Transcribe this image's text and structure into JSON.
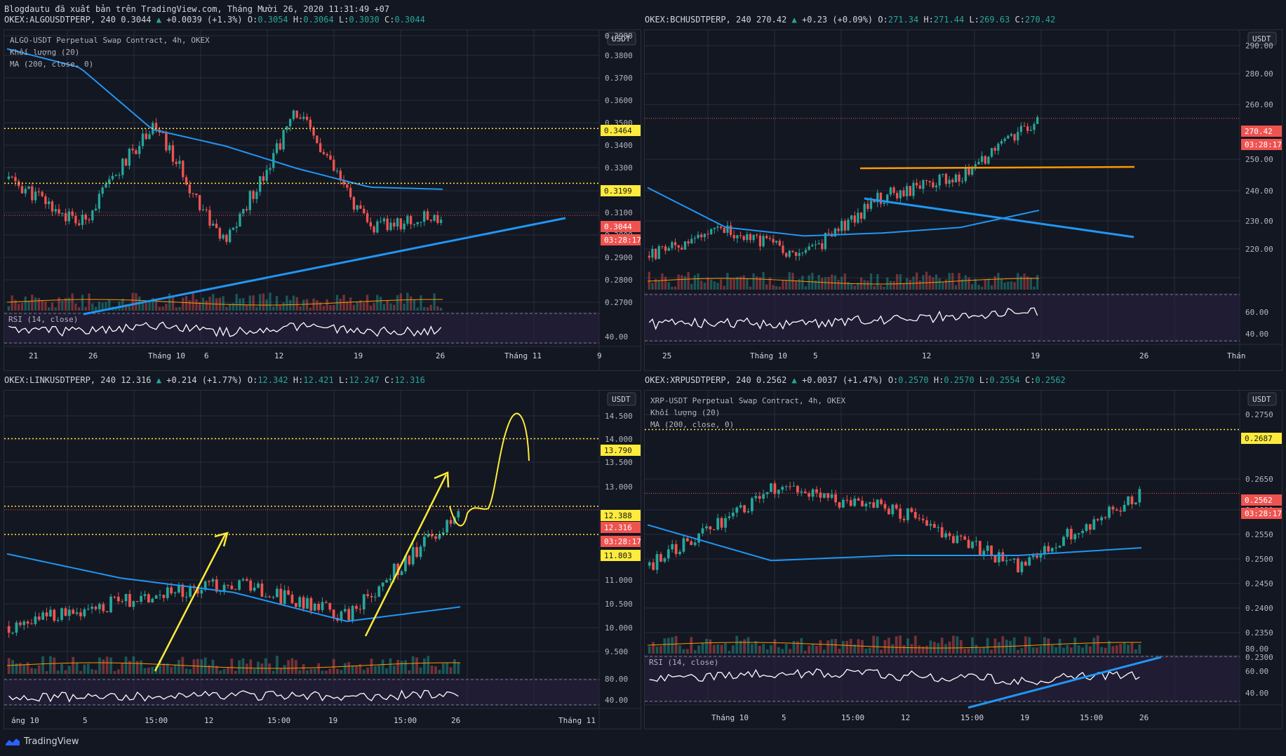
{
  "header": {
    "text": "Blogdautu đã xuất bản trên TradingView.com, Tháng Mười 26, 2020 11:31:49 +07"
  },
  "brand": {
    "name": "TradingView"
  },
  "colors": {
    "up": "#26a69a",
    "down": "#ef5350",
    "ma": "#2196f3",
    "rsi": "#ffffff",
    "volMA": "#ff9800",
    "level": "#ffeb3b",
    "bg": "#131722",
    "grid": "#2a2e39",
    "rsiBand": "#2a2144"
  },
  "panels": [
    {
      "id": "algo",
      "ticker": "OKEX:ALGOUSDTPERP, 240",
      "last": "0.3044",
      "change": "+0.0039 (+1.3%)",
      "ohlc": {
        "O": "0.3054",
        "H": "0.3064",
        "L": "0.3030",
        "C": "0.3044"
      },
      "legend": [
        "ALGO-USDT Perpetual Swap Contract, 4h, OKEX",
        "Khối lượng (20)",
        "MA (200, close, 0)"
      ],
      "currency": "USDT",
      "price_ticks": [
        "0.3900",
        "0.3800",
        "0.3700",
        "0.3600",
        "0.3500",
        "0.3400",
        "0.3300",
        "0.3200",
        "0.3100",
        "0.3000",
        "0.2900",
        "0.2800",
        "0.2700"
      ],
      "price_labels": [
        {
          "text": "0.3464",
          "kind": "level"
        },
        {
          "text": "0.3199",
          "kind": "level"
        },
        {
          "text": "0.3044",
          "kind": "price"
        },
        {
          "text": "03:28:17",
          "kind": "price"
        }
      ],
      "rsi_label": "RSI (14, close)",
      "rsi_ticks": [
        "40.00"
      ],
      "time_ticks": [
        "21",
        "26",
        "Tháng 10",
        "6",
        "12",
        "19",
        "26",
        "Tháng 11",
        "9"
      ]
    },
    {
      "id": "bch",
      "ticker": "OKEX:BCHUSDTPERP, 240",
      "last": "270.42",
      "change": "+0.23 (+0.09%)",
      "ohlc": {
        "O": "271.34",
        "H": "271.44",
        "L": "269.63",
        "C": "270.42"
      },
      "legend": [],
      "currency": "USDT",
      "price_ticks": [
        "290.00",
        "280.00",
        "260.00",
        "250.00",
        "240.00",
        "230.00",
        "220.00"
      ],
      "price_labels": [
        {
          "text": "270.42",
          "kind": "price"
        },
        {
          "text": "03:28:17",
          "kind": "price"
        }
      ],
      "rsi_label": "",
      "rsi_ticks": [
        "60.00",
        "40.00"
      ],
      "time_ticks": [
        "25",
        "Tháng 10",
        "5",
        "12",
        "19",
        "26",
        "Thán"
      ]
    },
    {
      "id": "link",
      "ticker": "OKEX:LINKUSDTPERP, 240",
      "last": "12.316",
      "change": "+0.214 (+1.77%)",
      "ohlc": {
        "O": "12.342",
        "H": "12.421",
        "L": "12.247",
        "C": "12.316"
      },
      "legend": [],
      "currency": "USDT",
      "price_ticks": [
        "14.500",
        "14.000",
        "13.500",
        "13.000",
        "11.000",
        "10.500",
        "10.000",
        "9.500"
      ],
      "price_labels": [
        {
          "text": "13.790",
          "kind": "level"
        },
        {
          "text": "12.388",
          "kind": "level"
        },
        {
          "text": "12.316",
          "kind": "price"
        },
        {
          "text": "03:28:17",
          "kind": "price"
        },
        {
          "text": "11.803",
          "kind": "level"
        }
      ],
      "rsi_label": "",
      "rsi_ticks": [
        "80.00",
        "40.00"
      ],
      "time_ticks": [
        "áng 10",
        "5",
        "15:00",
        "12",
        "15:00",
        "19",
        "15:00",
        "26",
        "Tháng 11"
      ]
    },
    {
      "id": "xrp",
      "ticker": "OKEX:XRPUSDTPERP, 240",
      "last": "0.2562",
      "change": "+0.0037 (+1.47%)",
      "ohlc": {
        "O": "0.2570",
        "H": "0.2570",
        "L": "0.2554",
        "C": "0.2562"
      },
      "legend": [
        "XRP-USDT Perpetual Swap Contract, 4h, OKEX",
        "Khối lượng (20)",
        "MA (200, close, 0)"
      ],
      "currency": "USDT",
      "price_ticks": [
        "0.2750",
        "0.2650",
        "0.2600",
        "0.2550",
        "0.2500",
        "0.2450",
        "0.2400",
        "0.2350",
        "0.2300"
      ],
      "price_labels": [
        {
          "text": "0.2687",
          "kind": "level"
        },
        {
          "text": "0.2562",
          "kind": "price"
        },
        {
          "text": "03:28:17",
          "kind": "price"
        }
      ],
      "rsi_label": "RSI (14, close)",
      "rsi_ticks": [
        "80.00",
        "60.00",
        "40.00"
      ],
      "time_ticks": [
        "Tháng 10",
        "5",
        "15:00",
        "12",
        "15:00",
        "19",
        "15:00",
        "26"
      ]
    }
  ],
  "chart_data": [
    {
      "type": "line",
      "title": "ALGO-USDT Perpetual Swap Contract, 4h, OKEX",
      "ylim": [
        0.265,
        0.392
      ],
      "levels": [
        0.3464,
        0.3199
      ],
      "last": 0.3044,
      "x": [
        "Sep 21",
        "Sep 26",
        "Oct 1",
        "Oct 6",
        "Oct 12",
        "Oct 19",
        "Oct 26"
      ],
      "series": [
        {
          "name": "close",
          "values": [
            0.322,
            0.3,
            0.349,
            0.29,
            0.355,
            0.298,
            0.304
          ]
        },
        {
          "name": "MA (200, close, 0)",
          "values": [
            0.385,
            0.376,
            0.346,
            0.338,
            0.327,
            0.318,
            0.317
          ]
        }
      ]
    },
    {
      "type": "line",
      "ylim": [
        215,
        300
      ],
      "last": 270.42,
      "x": [
        "Sep 25",
        "Oct 1",
        "Oct 5",
        "Oct 12",
        "Oct 19",
        "Oct 26"
      ],
      "series": [
        {
          "name": "close",
          "values": [
            222,
            231,
            222,
            243,
            250,
            270
          ]
        },
        {
          "name": "MA",
          "values": [
            246,
            232,
            229,
            230,
            232,
            238
          ]
        }
      ]
    },
    {
      "type": "line",
      "ylim": [
        9.2,
        14.7
      ],
      "levels": [
        13.79,
        12.388,
        11.803
      ],
      "last": 12.316,
      "x": [
        "Oct 1",
        "Oct 5",
        "Oct 12",
        "Oct 19",
        "Oct 26"
      ],
      "series": [
        {
          "name": "close",
          "values": [
            9.9,
            10.4,
            10.8,
            10.1,
            12.3
          ]
        },
        {
          "name": "MA",
          "values": [
            11.4,
            10.9,
            10.6,
            10.0,
            10.3
          ]
        }
      ]
    },
    {
      "type": "line",
      "title": "XRP-USDT Perpetual Swap Contract, 4h, OKEX",
      "ylim": [
        0.2275,
        0.2755
      ],
      "levels": [
        0.2687
      ],
      "last": 0.2562,
      "x": [
        "Oct 1",
        "Oct 5",
        "Oct 12",
        "Oct 19",
        "Oct 26"
      ],
      "series": [
        {
          "name": "close",
          "values": [
            0.242,
            0.257,
            0.253,
            0.242,
            0.2562
          ]
        },
        {
          "name": "MA (200, close, 0)",
          "values": [
            0.25,
            0.243,
            0.244,
            0.244,
            0.2455
          ]
        }
      ]
    }
  ]
}
